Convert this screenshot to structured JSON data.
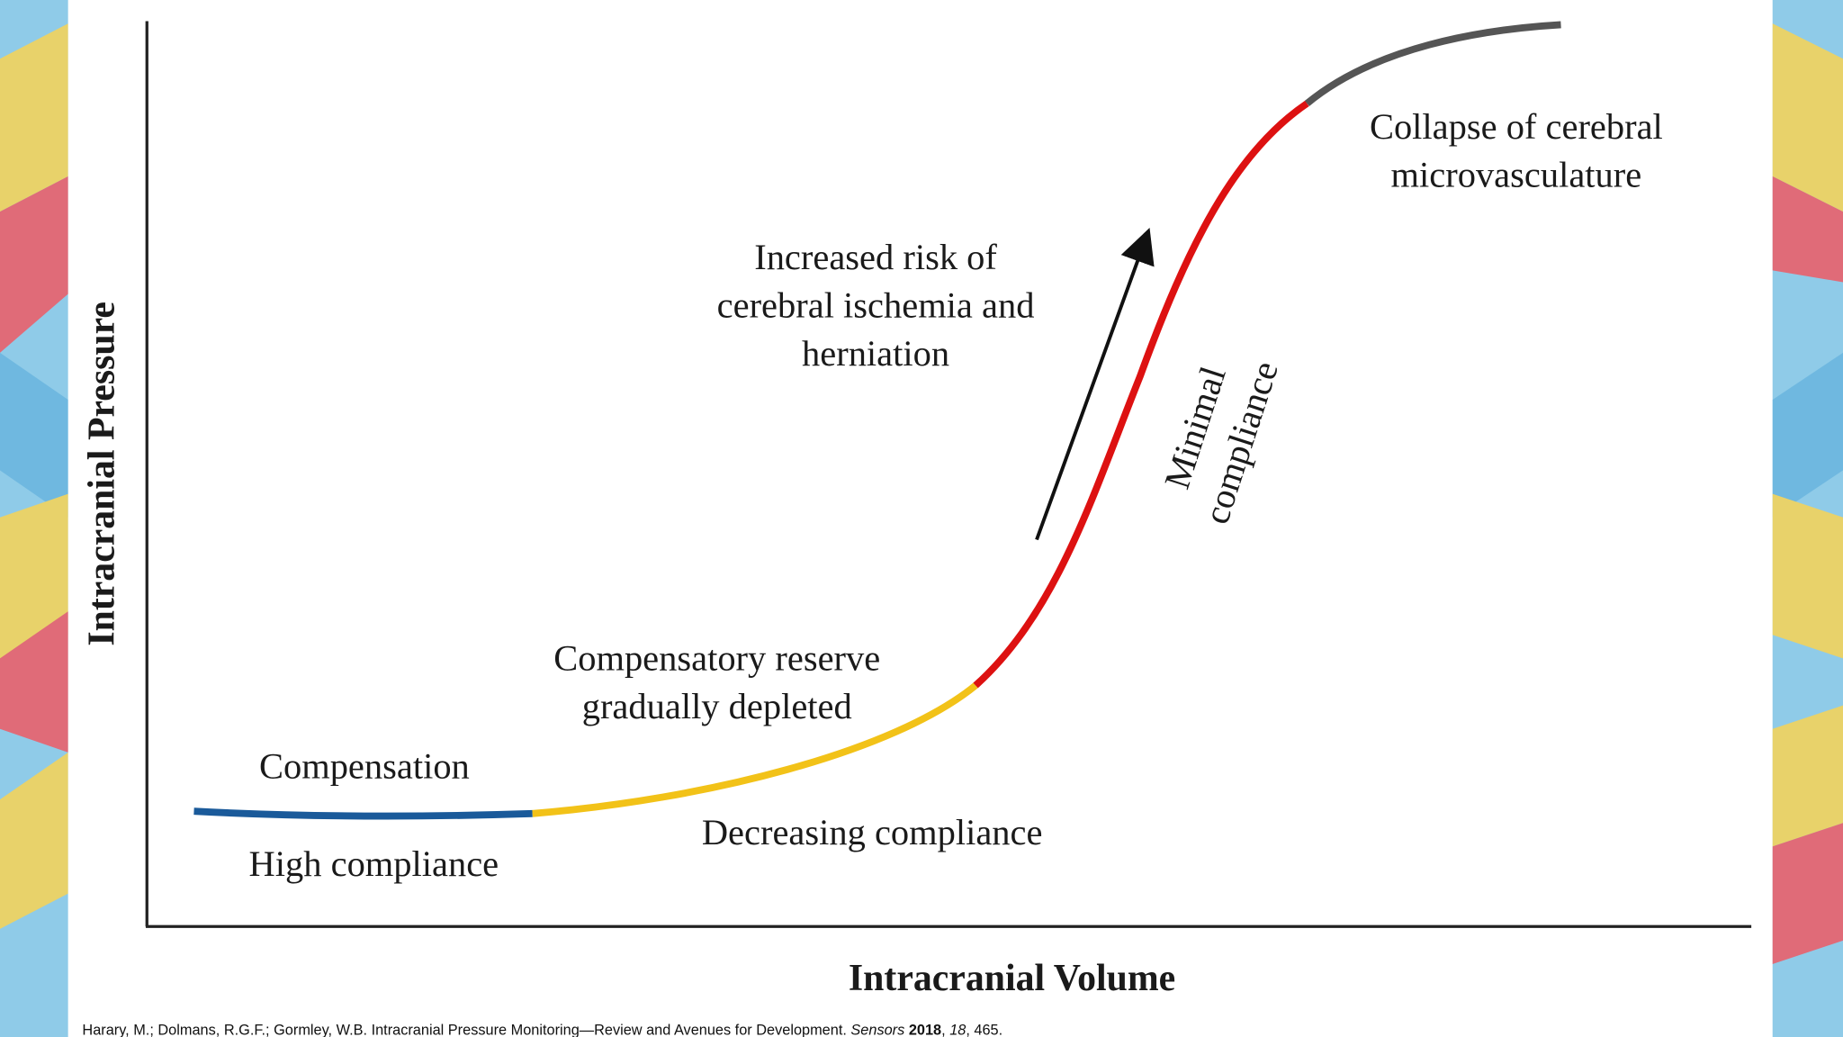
{
  "axes": {
    "y_label": "Intracranial Pressure",
    "x_label": "Intracranial Volume"
  },
  "annotations": [
    {
      "lines": [
        "Collapse of cerebral",
        "microvasculature"
      ]
    },
    {
      "lines": [
        "Increased risk of",
        "cerebral ischemia and",
        "herniation"
      ]
    },
    {
      "lines": [
        "Minimal",
        "compliance"
      ]
    },
    {
      "lines": [
        "Compensatory reserve",
        "gradually depleted"
      ]
    },
    {
      "lines": [
        "Compensation"
      ]
    },
    {
      "lines": [
        "High compliance"
      ]
    },
    {
      "lines": [
        "Decreasing compliance"
      ]
    }
  ],
  "citation": {
    "parts": [
      "Harary, M.; Dolmans, R.G.F.; Gormley, W.B. Intracranial Pressure Monitoring—Review and Avenues for Development. ",
      "Sensors",
      " ",
      "2018",
      ", ",
      "18",
      ", 465."
    ]
  }
}
